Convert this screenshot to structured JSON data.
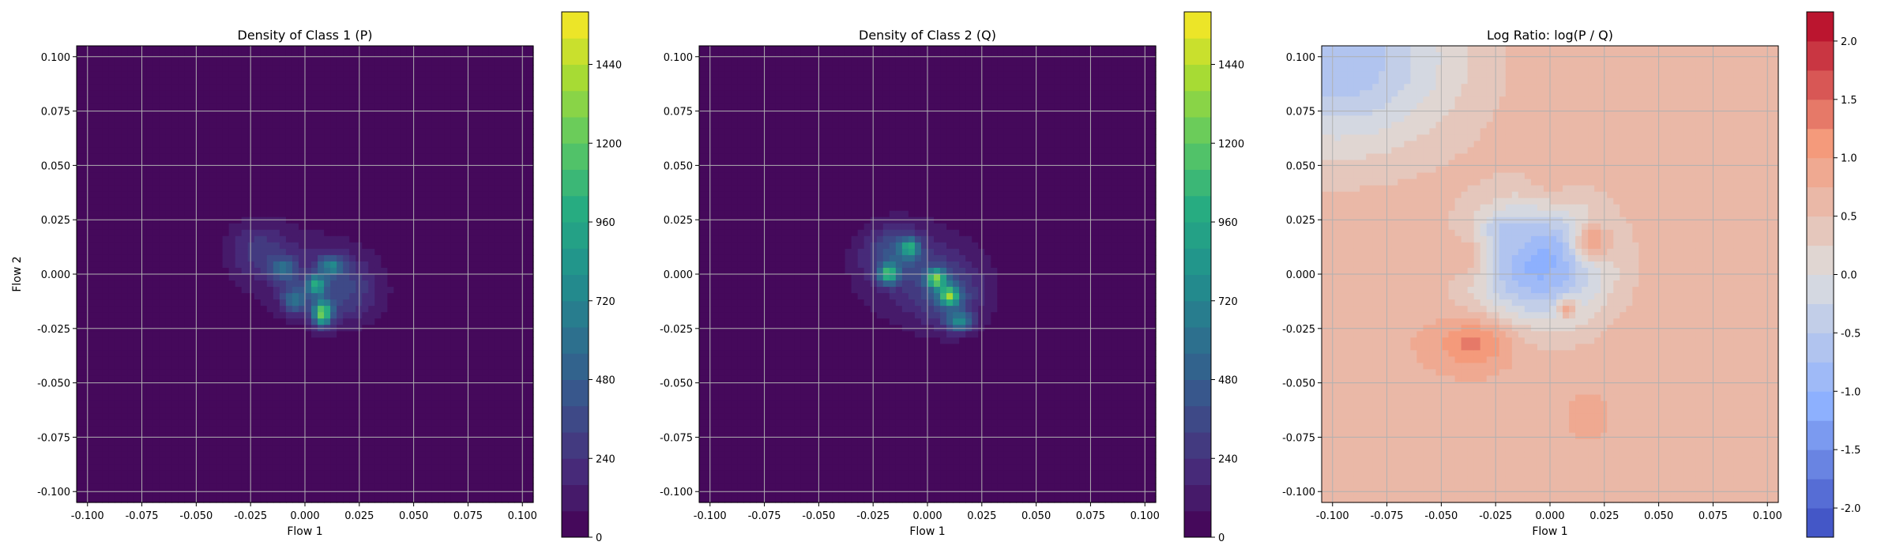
{
  "chart_data": [
    {
      "type": "heatmap",
      "title": "Density of Class 1 (P)",
      "xlabel": "Flow 1",
      "ylabel": "Flow 2",
      "xlim": [
        -0.105,
        0.105
      ],
      "ylim": [
        -0.105,
        0.105
      ],
      "xticks": [
        "-0.100",
        "-0.075",
        "-0.050",
        "-0.025",
        "0.000",
        "0.025",
        "0.050",
        "0.075",
        "0.100"
      ],
      "yticks": [
        "-0.100",
        "-0.075",
        "-0.050",
        "-0.025",
        "0.000",
        "0.025",
        "0.050",
        "0.075",
        "0.100"
      ],
      "grid": true,
      "colormap": "viridis",
      "colorbar_ticks": [
        "0",
        "240",
        "480",
        "720",
        "960",
        "1200",
        "1440"
      ],
      "colorbar_range": [
        0,
        1600
      ],
      "background_color": "#440154",
      "blobs": [
        {
          "x": 0.0,
          "y": 0.0,
          "sx": 0.022,
          "sy": 0.016,
          "level": 150
        },
        {
          "x": -0.022,
          "y": 0.012,
          "sx": 0.01,
          "sy": 0.009,
          "level": 220
        },
        {
          "x": 0.018,
          "y": -0.008,
          "sx": 0.012,
          "sy": 0.011,
          "level": 260
        },
        {
          "x": 0.008,
          "y": -0.018,
          "sx": 0.003,
          "sy": 0.004,
          "level": 1100
        },
        {
          "x": 0.005,
          "y": -0.005,
          "sx": 0.003,
          "sy": 0.003,
          "level": 750
        },
        {
          "x": 0.012,
          "y": 0.004,
          "sx": 0.004,
          "sy": 0.003,
          "level": 520
        },
        {
          "x": -0.01,
          "y": 0.002,
          "sx": 0.004,
          "sy": 0.004,
          "level": 420
        },
        {
          "x": -0.005,
          "y": -0.012,
          "sx": 0.004,
          "sy": 0.004,
          "level": 480
        }
      ]
    },
    {
      "type": "heatmap",
      "title": "Density of Class 2 (Q)",
      "xlabel": "Flow 1",
      "ylabel": "",
      "xlim": [
        -0.105,
        0.105
      ],
      "ylim": [
        -0.105,
        0.105
      ],
      "xticks": [
        "-0.100",
        "-0.075",
        "-0.050",
        "-0.025",
        "0.000",
        "0.025",
        "0.050",
        "0.075",
        "0.100"
      ],
      "yticks": [
        "-0.100",
        "-0.075",
        "-0.050",
        "-0.025",
        "0.000",
        "0.025",
        "0.050",
        "0.075",
        "0.100"
      ],
      "grid": true,
      "colormap": "viridis",
      "colorbar_ticks": [
        "0",
        "240",
        "480",
        "720",
        "960",
        "1200",
        "1440"
      ],
      "colorbar_range": [
        0,
        1600
      ],
      "background_color": "#440154",
      "blobs": [
        {
          "x": -0.002,
          "y": -0.002,
          "sx": 0.024,
          "sy": 0.018,
          "level": 180
        },
        {
          "x": -0.015,
          "y": 0.01,
          "sx": 0.01,
          "sy": 0.009,
          "level": 320
        },
        {
          "x": 0.01,
          "y": -0.01,
          "sx": 0.01,
          "sy": 0.01,
          "level": 300
        },
        {
          "x": 0.004,
          "y": -0.002,
          "sx": 0.003,
          "sy": 0.003,
          "level": 1000
        },
        {
          "x": 0.01,
          "y": -0.01,
          "sx": 0.003,
          "sy": 0.003,
          "level": 950
        },
        {
          "x": -0.018,
          "y": 0.0,
          "sx": 0.003,
          "sy": 0.003,
          "level": 850
        },
        {
          "x": -0.008,
          "y": 0.012,
          "sx": 0.003,
          "sy": 0.003,
          "level": 700
        },
        {
          "x": 0.015,
          "y": -0.022,
          "sx": 0.004,
          "sy": 0.003,
          "level": 600
        }
      ]
    },
    {
      "type": "heatmap",
      "title": "Log Ratio: log(P / Q)",
      "xlabel": "Flow 1",
      "ylabel": "",
      "xlim": [
        -0.105,
        0.105
      ],
      "ylim": [
        -0.105,
        0.105
      ],
      "xticks": [
        "-0.100",
        "-0.075",
        "-0.050",
        "-0.025",
        "0.000",
        "0.025",
        "0.050",
        "0.075",
        "0.100"
      ],
      "yticks": [
        "-0.100",
        "-0.075",
        "-0.050",
        "-0.025",
        "0.000",
        "0.025",
        "0.050",
        "0.075",
        "0.100"
      ],
      "grid": true,
      "colormap": "coolwarm",
      "colorbar_ticks": [
        "-2.0",
        "-1.5",
        "-1.0",
        "-0.5",
        "0.0",
        "0.5",
        "1.0",
        "1.5",
        "2.0"
      ],
      "colorbar_range": [
        -2.25,
        2.25
      ],
      "background_level": 0.7,
      "blobs": [
        {
          "x": -0.098,
          "y": 0.098,
          "sx": 0.04,
          "sy": 0.03,
          "level": -0.7
        },
        {
          "x": -0.005,
          "y": 0.005,
          "sx": 0.022,
          "sy": 0.02,
          "level": -1.1
        },
        {
          "x": -0.02,
          "y": 0.018,
          "sx": 0.008,
          "sy": 0.006,
          "level": -0.6
        },
        {
          "x": -0.035,
          "y": -0.032,
          "sx": 0.013,
          "sy": 0.008,
          "level": 1.3
        },
        {
          "x": 0.02,
          "y": 0.015,
          "sx": 0.006,
          "sy": 0.006,
          "level": 1.0
        },
        {
          "x": -0.04,
          "y": 0.008,
          "sx": 0.008,
          "sy": 0.008,
          "level": 0.7
        },
        {
          "x": 0.018,
          "y": -0.065,
          "sx": 0.008,
          "sy": 0.01,
          "level": 0.8
        },
        {
          "x": 0.0,
          "y": 0.045,
          "sx": 0.008,
          "sy": 0.008,
          "level": 0.6
        },
        {
          "x": 0.05,
          "y": 0.04,
          "sx": 0.012,
          "sy": 0.014,
          "level": 0.5
        },
        {
          "x": 0.008,
          "y": -0.016,
          "sx": 0.003,
          "sy": 0.003,
          "level": 0.9
        }
      ]
    }
  ]
}
